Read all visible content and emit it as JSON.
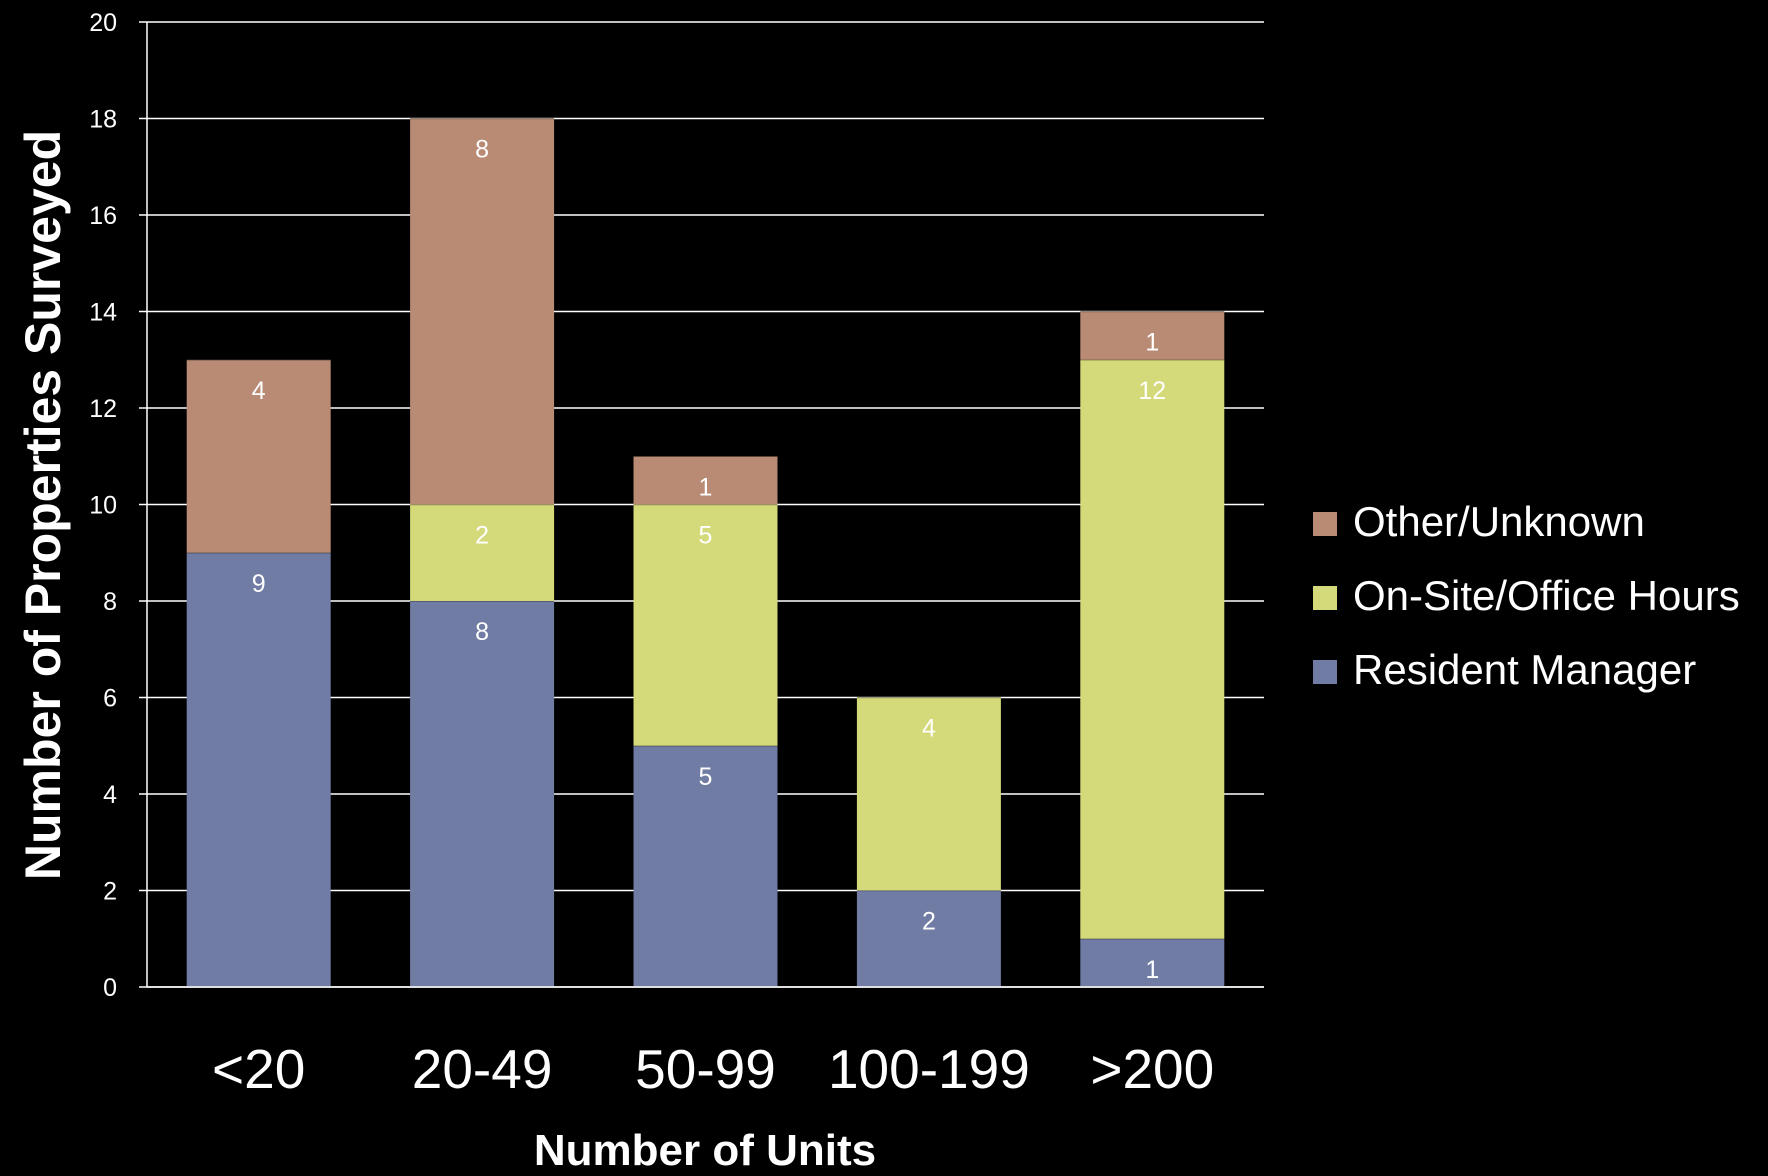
{
  "chart_data": {
    "type": "bar",
    "stacked": true,
    "categories": [
      "<20",
      "20-49",
      "50-99",
      "100-199",
      ">200"
    ],
    "series": [
      {
        "name": "Resident Manager",
        "color": "#717ca4",
        "values": [
          9,
          8,
          5,
          2,
          1
        ]
      },
      {
        "name": "On-Site/Office Hours",
        "color": "#d4d97a",
        "values": [
          0,
          2,
          5,
          4,
          12
        ]
      },
      {
        "name": "Other/Unknown",
        "color": "#b98a74",
        "values": [
          4,
          8,
          1,
          0,
          1
        ]
      }
    ],
    "xlabel": "Number of Units",
    "ylabel": "Number of Properties Surveyed",
    "ylim": [
      0,
      20
    ],
    "yticks": [
      0,
      2,
      4,
      6,
      8,
      10,
      12,
      14,
      16,
      18,
      20
    ],
    "grid": true,
    "legend_position": "right",
    "legend_order": [
      "Other/Unknown",
      "On-Site/Office Hours",
      "Resident Manager"
    ],
    "data_labels": true
  },
  "style": {
    "background": "#000000",
    "text_color": "#ffffff",
    "grid_color": "#ffffff"
  }
}
